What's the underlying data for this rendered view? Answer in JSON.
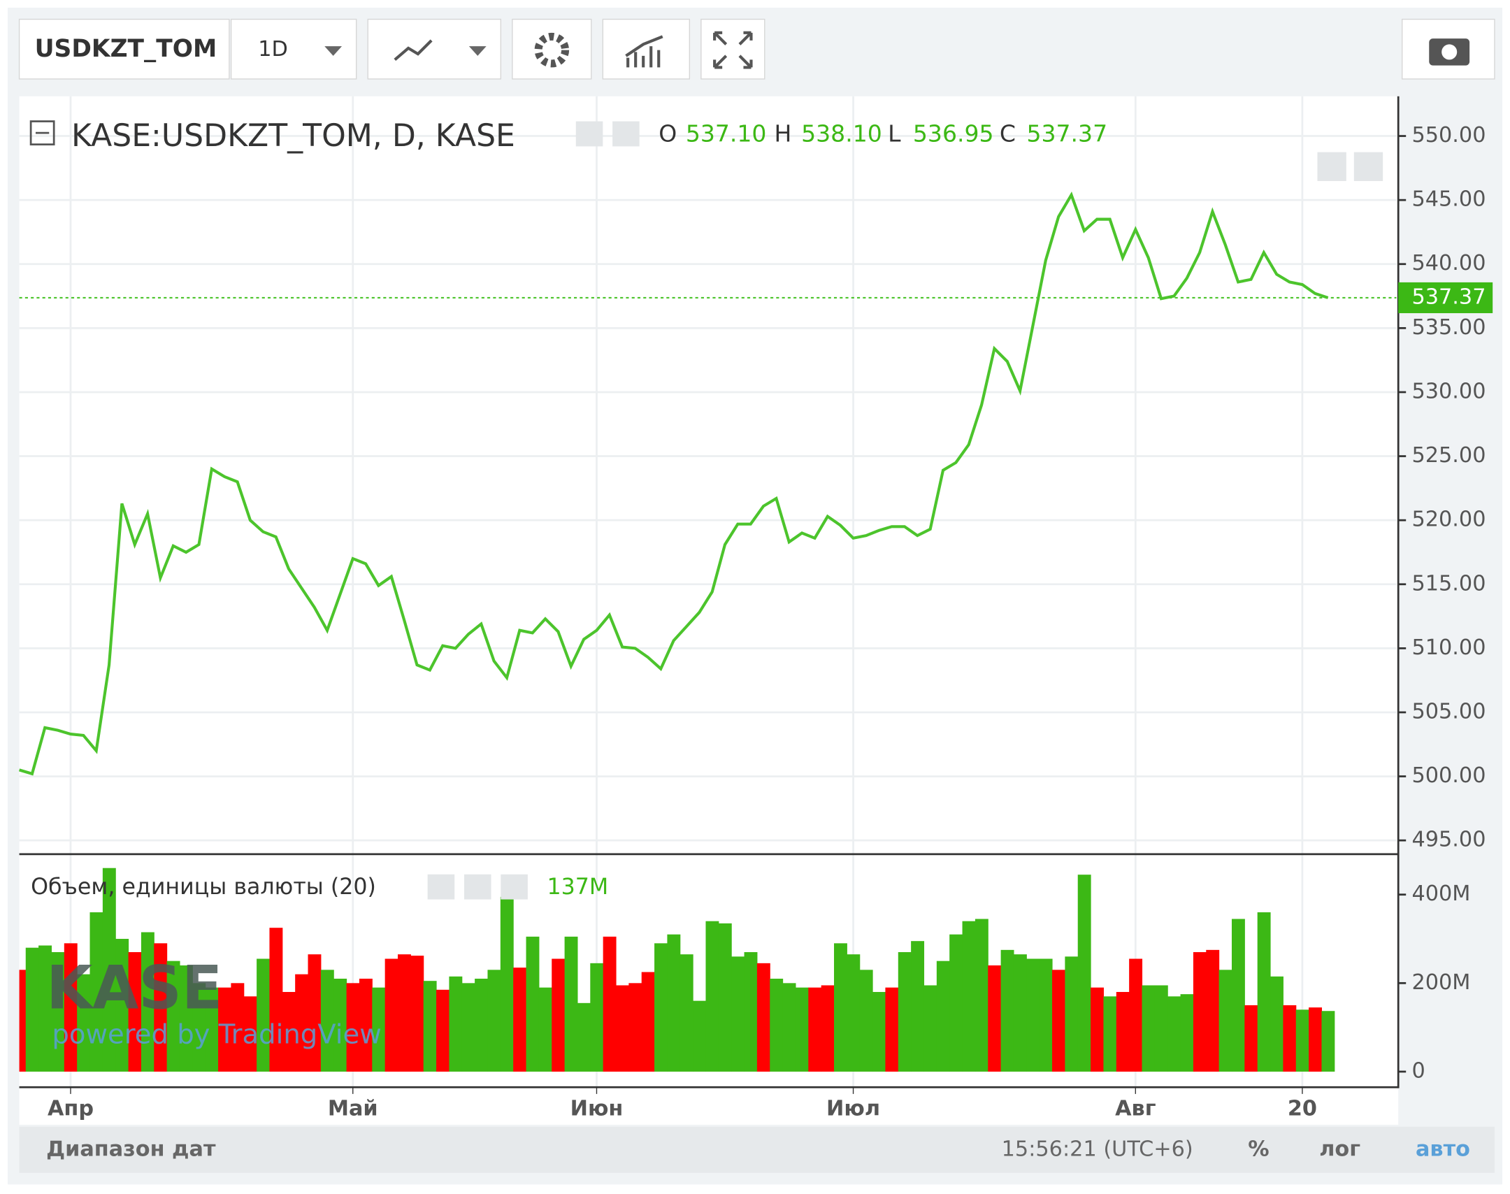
{
  "toolbar": {
    "symbol": "USDKZT_TOM",
    "interval": "1D"
  },
  "legend": {
    "title": "KASE:USDKZT_TOM, D, KASE",
    "o": "O",
    "open": "537.10",
    "h": "H",
    "high": "538.10",
    "l": "L",
    "low": "536.95",
    "c": "C",
    "close": "537.37"
  },
  "watermark": {
    "logo": "KASE",
    "powered": "powered by TradingView"
  },
  "footer": {
    "range": "Диапазон дат",
    "time": "15:56:21 (UTC+6)",
    "percent": "%",
    "log": "лог",
    "auto": "авто"
  },
  "chart_data": [
    {
      "type": "line",
      "color": "#4cc42c",
      "grid": true,
      "categories": [
        null,
        null,
        null,
        null,
        "Апр",
        null,
        null,
        null,
        null,
        null,
        null,
        null,
        null,
        null,
        null,
        null,
        null,
        null,
        null,
        null,
        null,
        null,
        null,
        null,
        null,
        null,
        "Май",
        null,
        null,
        null,
        null,
        null,
        null,
        null,
        null,
        null,
        null,
        null,
        null,
        null,
        null,
        null,
        null,
        null,
        null,
        "Июн",
        null,
        null,
        null,
        null,
        null,
        null,
        null,
        null,
        null,
        null,
        null,
        null,
        null,
        null,
        null,
        null,
        null,
        null,
        null,
        "Июл",
        null,
        null,
        null,
        null,
        null,
        null,
        null,
        null,
        null,
        null,
        null,
        null,
        null,
        null,
        null,
        null,
        null,
        null,
        null,
        null,
        null,
        "Авг",
        null,
        null,
        null,
        null,
        null,
        null,
        null,
        null,
        null,
        null,
        null,
        null,
        "20",
        null,
        null
      ],
      "values": [
        500.5,
        500.2,
        503.8,
        503.6,
        503.3,
        503.2,
        502.0,
        508.7,
        521.3,
        518.1,
        520.5,
        515.5,
        518.0,
        517.5,
        518.1,
        524.0,
        523.4,
        523.0,
        520.0,
        519.1,
        518.7,
        516.2,
        514.7,
        513.2,
        511.4,
        514.2,
        517.0,
        516.6,
        514.9,
        515.6,
        512.2,
        508.7,
        508.3,
        510.2,
        510.0,
        511.1,
        511.9,
        509.0,
        507.7,
        511.4,
        511.2,
        512.3,
        511.3,
        508.6,
        510.7,
        511.4,
        512.6,
        510.1,
        510.0,
        509.3,
        508.4,
        510.6,
        511.7,
        512.8,
        514.4,
        518.1,
        519.7,
        519.7,
        521.1,
        521.7,
        518.3,
        519.0,
        518.6,
        520.3,
        519.6,
        518.6,
        518.8,
        519.2,
        519.5,
        519.5,
        518.8,
        519.3,
        523.9,
        524.5,
        525.9,
        529.0,
        533.4,
        532.4,
        530.1,
        535.2,
        540.3,
        543.7,
        545.4,
        542.6,
        543.5,
        543.5,
        540.5,
        542.7,
        540.5,
        537.3,
        537.5,
        538.9,
        540.9,
        544.1,
        541.5,
        538.6,
        538.8,
        540.9,
        539.2,
        538.6,
        538.4,
        537.7,
        537.37
      ],
      "ylim": [
        494,
        553.1
      ],
      "yticks": [
        {
          "value": 495,
          "label": "495.00"
        },
        {
          "value": 500,
          "label": "500.00"
        },
        {
          "value": 505,
          "label": "505.00"
        },
        {
          "value": 510,
          "label": "510.00"
        },
        {
          "value": 515,
          "label": "515.00"
        },
        {
          "value": 520,
          "label": "520.00"
        },
        {
          "value": 525,
          "label": "525.00"
        },
        {
          "value": 530,
          "label": "530.00"
        },
        {
          "value": 535,
          "label": "535.00"
        },
        {
          "value": 540,
          "label": "540.00"
        },
        {
          "value": 545,
          "label": "545.00"
        },
        {
          "value": 550,
          "label": "550.00"
        }
      ]
    },
    {
      "type": "bar",
      "title": "Объем, единицы валюты (20)",
      "values": [
        230,
        280,
        285,
        270,
        290,
        220,
        360,
        460,
        300,
        270,
        315,
        290,
        250,
        240,
        200,
        190,
        190,
        200,
        170,
        255,
        325,
        180,
        220,
        265,
        230,
        210,
        200,
        210,
        190,
        255,
        265,
        262,
        205,
        185,
        215,
        200,
        210,
        230,
        395,
        235,
        305,
        190,
        255,
        305,
        155,
        245,
        305,
        195,
        200,
        225,
        290,
        310,
        265,
        160,
        340,
        335,
        260,
        270,
        245,
        210,
        200,
        190,
        190,
        195,
        290,
        265,
        230,
        180,
        190,
        270,
        295,
        195,
        250,
        310,
        340,
        345,
        240,
        275,
        265,
        255,
        255,
        230,
        260,
        445,
        190,
        170,
        180,
        255,
        195,
        195,
        170,
        175,
        270,
        275,
        230,
        345,
        150,
        360,
        215,
        150,
        140,
        145,
        137
      ],
      "value_labels": [
        null,
        null,
        null,
        null,
        null,
        null,
        null,
        null,
        null,
        null,
        null,
        null,
        null,
        null,
        null,
        null,
        null,
        null,
        null,
        null,
        null,
        null,
        null,
        null,
        null,
        null,
        null,
        null,
        null,
        null,
        null,
        null,
        null,
        null,
        null,
        null,
        null,
        null,
        null,
        null,
        null,
        null,
        null,
        null,
        null,
        null,
        null,
        null,
        null,
        null,
        null,
        null,
        null,
        null,
        null,
        null,
        null,
        null,
        null,
        null,
        null,
        null,
        null,
        null,
        null,
        null,
        null,
        null,
        null,
        null,
        null,
        null,
        null,
        null,
        null,
        null,
        null,
        null,
        null,
        null,
        null,
        null,
        null,
        null,
        null,
        null,
        null,
        null,
        null,
        null,
        null,
        null,
        null,
        null,
        null,
        null,
        null,
        null,
        null,
        null,
        null,
        null,
        "137M"
      ],
      "colors": [
        "#ff0000",
        "#3cb815",
        "#3cb815",
        "#3cb815",
        "#ff0000",
        "#3cb815",
        "#3cb815",
        "#3cb815",
        "#3cb815",
        "#ff0000",
        "#3cb815",
        "#ff0000",
        "#3cb815",
        "#3cb815",
        "#3cb815",
        "#3cb815",
        "#ff0000",
        "#ff0000",
        "#ff0000",
        "#3cb815",
        "#ff0000",
        "#ff0000",
        "#ff0000",
        "#ff0000",
        "#3cb815",
        "#3cb815",
        "#ff0000",
        "#ff0000",
        "#3cb815",
        "#ff0000",
        "#ff0000",
        "#ff0000",
        "#3cb815",
        "#ff0000",
        "#3cb815",
        "#3cb815",
        "#3cb815",
        "#3cb815",
        "#3cb815",
        "#ff0000",
        "#3cb815",
        "#3cb815",
        "#ff0000",
        "#3cb815",
        "#3cb815",
        "#3cb815",
        "#ff0000",
        "#ff0000",
        "#ff0000",
        "#ff0000",
        "#3cb815",
        "#3cb815",
        "#3cb815",
        "#3cb815",
        "#3cb815",
        "#3cb815",
        "#3cb815",
        "#3cb815",
        "#ff0000",
        "#3cb815",
        "#3cb815",
        "#3cb815",
        "#ff0000",
        "#ff0000",
        "#3cb815",
        "#3cb815",
        "#3cb815",
        "#3cb815",
        "#ff0000",
        "#3cb815",
        "#3cb815",
        "#3cb815",
        "#3cb815",
        "#3cb815",
        "#3cb815",
        "#3cb815",
        "#ff0000",
        "#3cb815",
        "#3cb815",
        "#3cb815",
        "#3cb815",
        "#ff0000",
        "#3cb815",
        "#3cb815",
        "#ff0000",
        "#3cb815",
        "#ff0000",
        "#ff0000",
        "#3cb815",
        "#3cb815",
        "#3cb815",
        "#3cb815",
        "#ff0000",
        "#ff0000",
        "#3cb815",
        "#3cb815",
        "#ff0000",
        "#3cb815",
        "#3cb815",
        "#ff0000",
        "#3cb815",
        "#ff0000",
        "#3cb815"
      ],
      "ylim": [
        -33,
        487
      ],
      "yticks": [
        0,
        {
          "value": 200,
          "label": "200M"
        },
        {
          "value": 400,
          "label": "400M"
        }
      ]
    }
  ]
}
